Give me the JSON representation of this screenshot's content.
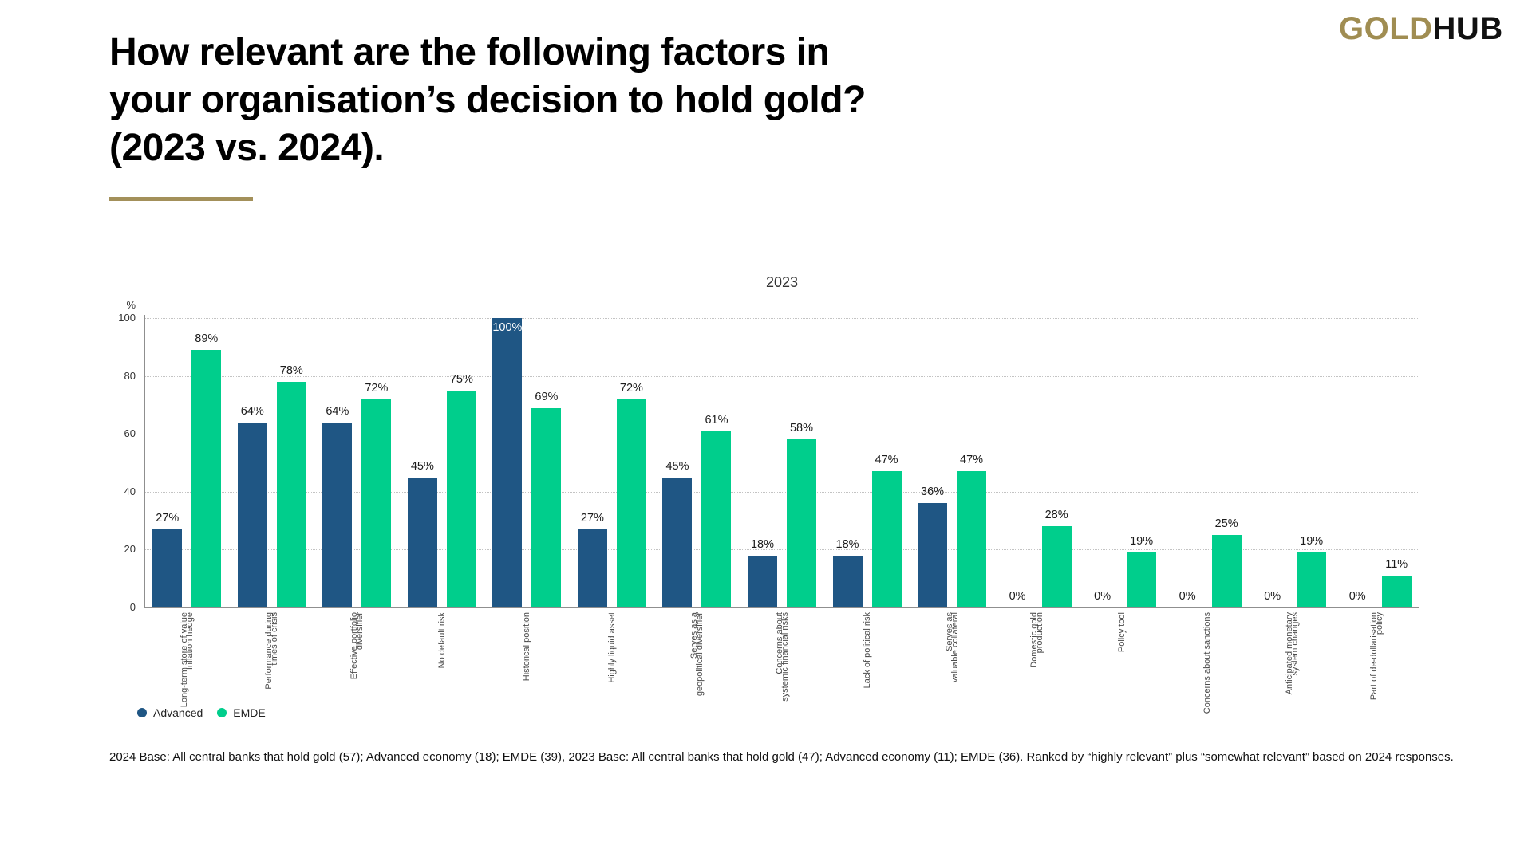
{
  "logo": {
    "gold": "GOLD",
    "hub": "HUB"
  },
  "title": {
    "lines": [
      "How relevant are the following factors in",
      "your organisation’s decision to hold gold?",
      "(2023 vs. 2024)."
    ]
  },
  "chart_data": {
    "type": "bar",
    "title": "2023",
    "unit": "%",
    "ylim": [
      0,
      100
    ],
    "yticks": [
      0,
      20,
      40,
      60,
      80,
      100
    ],
    "grid": "dotted horizontal gridlines",
    "legend_position": "bottom-left",
    "value_label_suffix": "%",
    "categories": [
      {
        "lines": [
          "Long-term store of value",
          "Inflation hedge"
        ]
      },
      {
        "lines": [
          "Performance during",
          "times of crisis"
        ]
      },
      {
        "lines": [
          "Effective portfolio",
          "diversifier"
        ]
      },
      {
        "lines": [
          "No default risk"
        ]
      },
      {
        "lines": [
          "Historical position"
        ]
      },
      {
        "lines": [
          "Highly liquid asset"
        ]
      },
      {
        "lines": [
          "Serves as a",
          "geopolitical diversifier"
        ]
      },
      {
        "lines": [
          "Concerns about",
          "systemic financial risks"
        ]
      },
      {
        "lines": [
          "Lack of political risk"
        ]
      },
      {
        "lines": [
          "Serves as",
          "valuable collateral"
        ]
      },
      {
        "lines": [
          "Domestic gold",
          "production"
        ]
      },
      {
        "lines": [
          "Policy tool"
        ]
      },
      {
        "lines": [
          "Concerns about sanctions"
        ]
      },
      {
        "lines": [
          "Anticipated monetary",
          "system changes"
        ]
      },
      {
        "lines": [
          "Part of de-dollarisation",
          "policy"
        ]
      }
    ],
    "series": [
      {
        "name": "Advanced",
        "color": "#1f5684",
        "values": [
          27,
          64,
          64,
          45,
          100,
          27,
          45,
          18,
          18,
          36,
          0,
          0,
          0,
          0,
          0
        ]
      },
      {
        "name": "EMDE",
        "color": "#00ce8c",
        "values": [
          89,
          78,
          72,
          75,
          69,
          72,
          61,
          58,
          47,
          47,
          28,
          19,
          25,
          19,
          11
        ]
      }
    ]
  },
  "footnote": {
    "text": "2024 Base: All central banks that hold gold (57); Advanced economy (18); EMDE (39), 2023 Base: All central banks that hold gold (47); Advanced economy (11); EMDE (36). Ranked by “highly relevant” plus “somewhat relevant” based on 2024 responses."
  },
  "colors": {
    "advanced": "#1f5684",
    "emde": "#00ce8c",
    "gold_accent": "#a3905a",
    "axis": "#8f8f8f"
  }
}
